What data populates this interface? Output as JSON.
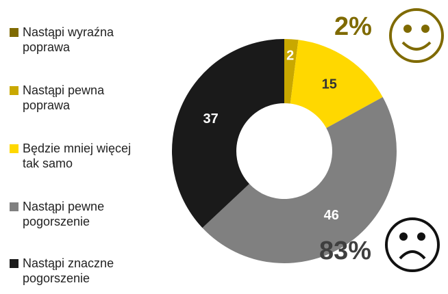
{
  "chart_data": {
    "type": "donut",
    "categories": [
      "Nastąpi wyraźna poprawa",
      "Nastąpi pewna poprawa",
      "Będzie mniej więcej tak samo",
      "Nastąpi pewne pogorszenie",
      "Nastąpi znaczne pogorszenie"
    ],
    "values": [
      0,
      2,
      15,
      46,
      37
    ],
    "colors": [
      "#7f6a00",
      "#c9a800",
      "#ffd800",
      "#808080",
      "#1a1a1a"
    ],
    "annotations": [
      "2%",
      "83%"
    ],
    "annotation_colors": [
      "#7f6a00",
      "#3f3f3f"
    ]
  }
}
